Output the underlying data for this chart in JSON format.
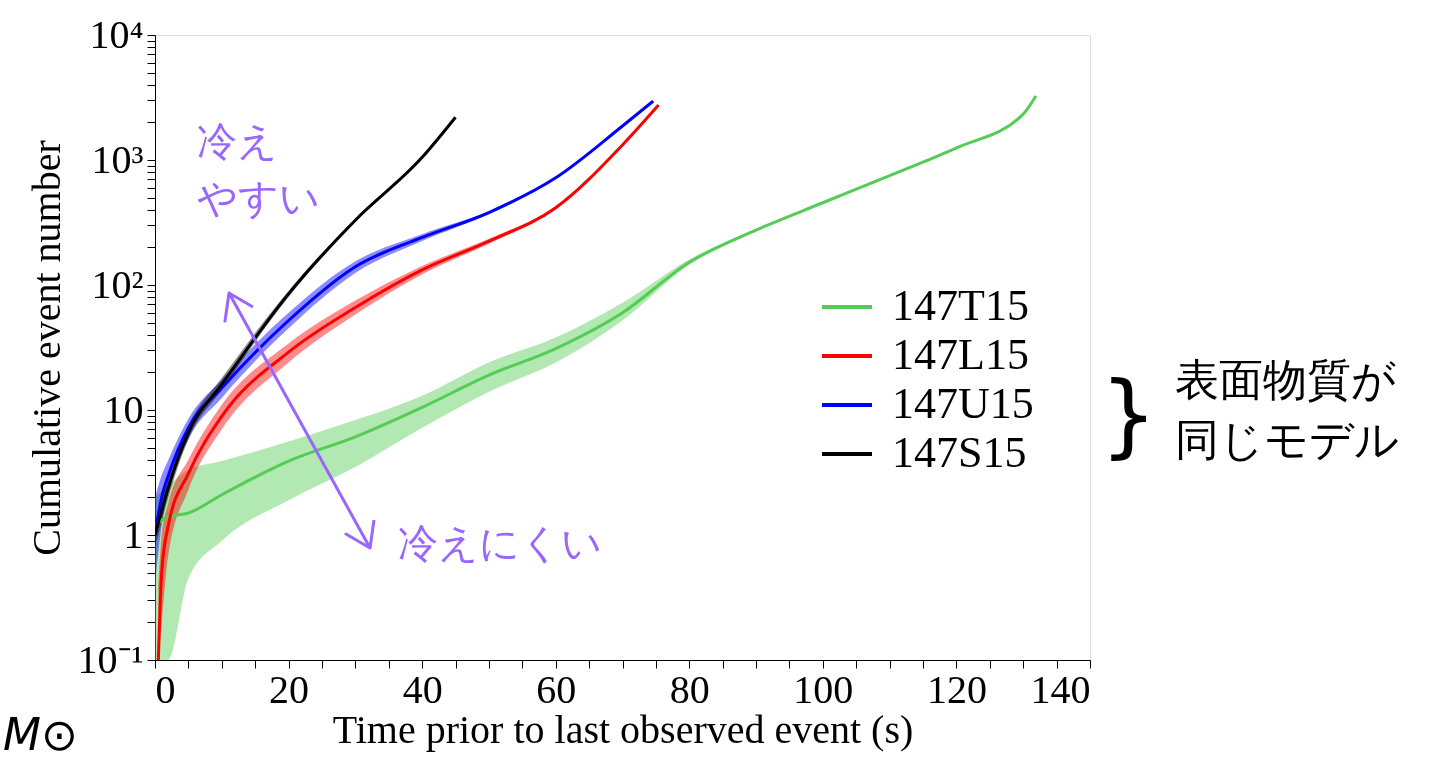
{
  "chart_data": {
    "type": "line",
    "xlabel": "Time prior to last observed event (s)",
    "ylabel": "Cumulative event number",
    "xlim": [
      0,
      140
    ],
    "ylim": [
      0.1,
      10000
    ],
    "log": true,
    "legend": "right",
    "xticks": [
      0,
      {
        "value": 5,
        "label": null
      },
      {
        "value": 10,
        "label": null
      },
      {
        "value": 15,
        "label": null
      },
      20,
      {
        "value": 25,
        "label": null
      },
      {
        "value": 30,
        "label": null
      },
      {
        "value": 35,
        "label": null
      },
      40,
      {
        "value": 45,
        "label": null
      },
      {
        "value": 50,
        "label": null
      },
      {
        "value": 55,
        "label": null
      },
      60,
      {
        "value": 65,
        "label": null
      },
      {
        "value": 70,
        "label": null
      },
      {
        "value": 75,
        "label": null
      },
      80,
      {
        "value": 85,
        "label": null
      },
      {
        "value": 90,
        "label": null
      },
      {
        "value": 95,
        "label": null
      },
      100,
      {
        "value": 105,
        "label": null
      },
      {
        "value": 110,
        "label": null
      },
      {
        "value": 115,
        "label": null
      },
      120,
      {
        "value": 125,
        "label": null
      },
      {
        "value": 130,
        "label": null
      },
      {
        "value": 135,
        "label": null
      },
      140
    ],
    "yticks": [
      {
        "value": 0.1,
        "label": "10⁻¹"
      },
      {
        "value": 0.2,
        "label": null
      },
      {
        "value": 0.3,
        "label": null
      },
      {
        "value": 0.4,
        "label": null
      },
      {
        "value": 0.5,
        "label": null
      },
      {
        "value": 0.6,
        "label": null
      },
      {
        "value": 0.7,
        "label": null
      },
      {
        "value": 0.8,
        "label": null
      },
      {
        "value": 0.9,
        "label": null
      },
      1,
      {
        "value": 2,
        "label": null
      },
      {
        "value": 3,
        "label": null
      },
      {
        "value": 4,
        "label": null
      },
      {
        "value": 5,
        "label": null
      },
      {
        "value": 6,
        "label": null
      },
      {
        "value": 7,
        "label": null
      },
      {
        "value": 8,
        "label": null
      },
      {
        "value": 9,
        "label": null
      },
      10,
      {
        "value": 20,
        "label": null
      },
      {
        "value": 30,
        "label": null
      },
      {
        "value": 40,
        "label": null
      },
      {
        "value": 50,
        "label": null
      },
      {
        "value": 60,
        "label": null
      },
      {
        "value": 70,
        "label": null
      },
      {
        "value": 80,
        "label": null
      },
      {
        "value": 90,
        "label": null
      },
      {
        "value": 100,
        "label": "10²"
      },
      {
        "value": 200,
        "label": null
      },
      {
        "value": 300,
        "label": null
      },
      {
        "value": 400,
        "label": null
      },
      {
        "value": 500,
        "label": null
      },
      {
        "value": 600,
        "label": null
      },
      {
        "value": 700,
        "label": null
      },
      {
        "value": 800,
        "label": null
      },
      {
        "value": 900,
        "label": null
      },
      {
        "value": 1000,
        "label": "10³"
      },
      {
        "value": 2000,
        "label": null
      },
      {
        "value": 3000,
        "label": null
      },
      {
        "value": 4000,
        "label": null
      },
      {
        "value": 5000,
        "label": null
      },
      {
        "value": 6000,
        "label": null
      },
      {
        "value": 7000,
        "label": null
      },
      {
        "value": 8000,
        "label": null
      },
      {
        "value": 9000,
        "label": null
      },
      {
        "value": 10000,
        "label": "10⁴"
      }
    ],
    "series": [
      {
        "name": "147T15",
        "color": "#55cc55",
        "x": [
          0,
          2,
          5,
          10,
          20,
          30,
          40,
          50,
          60,
          70,
          80,
          90,
          100,
          110,
          120,
          130,
          131.9
        ],
        "values": [
          1.2,
          1.4,
          1.5,
          2.1,
          3.9,
          6.1,
          10.5,
          19,
          31,
          60,
          152,
          275,
          455,
          750,
          1250,
          2330,
          3250
        ],
        "lower": [
          0.1,
          0.1,
          0.45,
          0.9,
          1.9,
          3.5,
          7.2,
          14,
          24,
          52,
          145,
          270,
          450,
          745,
          1245,
          2325,
          3250
        ],
        "upper": [
          2,
          2.5,
          3.3,
          3.9,
          5.6,
          8.3,
          13,
          24,
          38,
          72,
          160,
          280,
          460,
          755,
          1255,
          2335,
          3250
        ]
      },
      {
        "name": "147L15",
        "color": "#ff0000",
        "x": [
          0.5,
          1,
          2,
          5,
          10,
          20,
          30,
          40,
          50,
          60,
          70,
          75.4
        ],
        "values": [
          0.1,
          0.5,
          1.2,
          3.1,
          8.9,
          29,
          66,
          132,
          224,
          415,
          1320,
          2750
        ],
        "lower": [
          0.1,
          0.2,
          0.7,
          2.3,
          7,
          24,
          58,
          122,
          214,
          405,
          1310,
          2750
        ],
        "upper": [
          0.4,
          1,
          1.8,
          4,
          11,
          34,
          75,
          142,
          234,
          425,
          1330,
          2750
        ]
      },
      {
        "name": "147U15",
        "color": "#0000ff",
        "x": [
          0,
          1,
          2,
          5,
          10,
          20,
          30,
          40,
          50,
          60,
          70,
          74.6
        ],
        "values": [
          1,
          2,
          3,
          7.2,
          15,
          52,
          140,
          240,
          380,
          720,
          1870,
          2960
        ],
        "lower": [
          0.4,
          1.2,
          2.2,
          5.8,
          12.5,
          45,
          125,
          225,
          370,
          710,
          1860,
          2960
        ],
        "upper": [
          2,
          3,
          4,
          8.5,
          17.5,
          60,
          155,
          255,
          390,
          730,
          1880,
          2960
        ]
      },
      {
        "name": "147S15",
        "color": "#000000",
        "x": [
          0,
          2,
          5,
          10,
          20,
          30,
          40,
          45
        ],
        "values": [
          1,
          2.4,
          6.6,
          16,
          85,
          330,
          1050,
          2200
        ],
        "lower": [
          0.8,
          2,
          5.8,
          14.5,
          80,
          320,
          1040,
          2200
        ],
        "upper": [
          1.3,
          2.9,
          7.5,
          18,
          90,
          340,
          1060,
          2200
        ]
      }
    ],
    "annotations": [
      "冷え",
      "やすい",
      "冷えにくい",
      "}",
      "表面物質が",
      "同じモデル",
      "M⊙"
    ]
  }
}
